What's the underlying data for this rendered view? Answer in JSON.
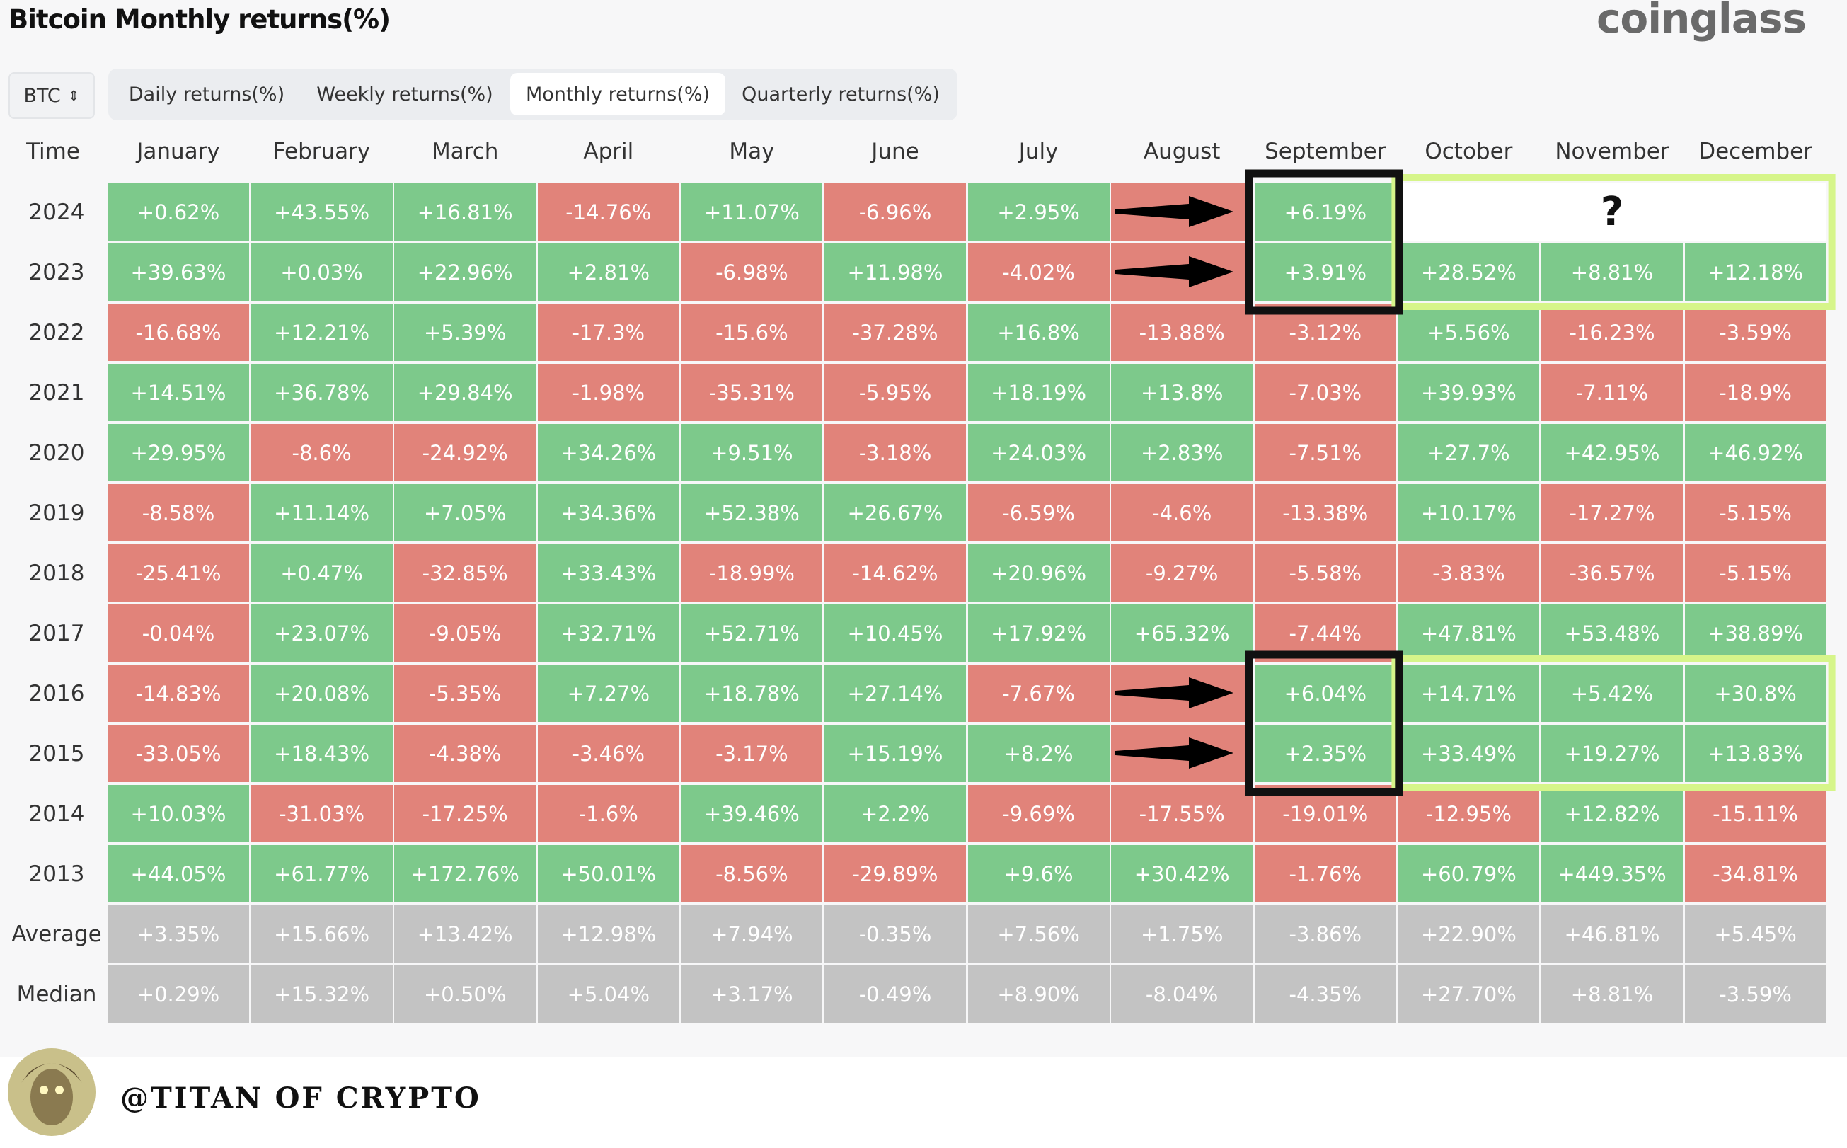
{
  "header": {
    "title": "Bitcoin Monthly returns(%)",
    "brand": "coinglass"
  },
  "controls": {
    "asset": "BTC",
    "tabs": [
      "Daily returns(%)",
      "Weekly returns(%)",
      "Monthly returns(%)",
      "Quarterly returns(%)"
    ],
    "active_tab": 2
  },
  "table": {
    "columns": [
      "Time",
      "January",
      "February",
      "March",
      "April",
      "May",
      "June",
      "July",
      "August",
      "September",
      "October",
      "November",
      "December"
    ],
    "rows": [
      [
        "2024",
        "+0.62%",
        "+43.55%",
        "+16.81%",
        "-14.76%",
        "+11.07%",
        "-6.96%",
        "+2.95%",
        null,
        "+6.19%"
      ],
      [
        "2023",
        "+39.63%",
        "+0.03%",
        "+22.96%",
        "+2.81%",
        "-6.98%",
        "+11.98%",
        "-4.02%",
        null,
        "+3.91%",
        "+28.52%",
        "+8.81%",
        "+12.18%"
      ],
      [
        "2022",
        "-16.68%",
        "+12.21%",
        "+5.39%",
        "-17.3%",
        "-15.6%",
        "-37.28%",
        "+16.8%",
        "-13.88%",
        "-3.12%",
        "+5.56%",
        "-16.23%",
        "-3.59%"
      ],
      [
        "2021",
        "+14.51%",
        "+36.78%",
        "+29.84%",
        "-1.98%",
        "-35.31%",
        "-5.95%",
        "+18.19%",
        "+13.8%",
        "-7.03%",
        "+39.93%",
        "-7.11%",
        "-18.9%"
      ],
      [
        "2020",
        "+29.95%",
        "-8.6%",
        "-24.92%",
        "+34.26%",
        "+9.51%",
        "-3.18%",
        "+24.03%",
        "+2.83%",
        "-7.51%",
        "+27.7%",
        "+42.95%",
        "+46.92%"
      ],
      [
        "2019",
        "-8.58%",
        "+11.14%",
        "+7.05%",
        "+34.36%",
        "+52.38%",
        "+26.67%",
        "-6.59%",
        "-4.6%",
        "-13.38%",
        "+10.17%",
        "-17.27%",
        "-5.15%"
      ],
      [
        "2018",
        "-25.41%",
        "+0.47%",
        "-32.85%",
        "+33.43%",
        "-18.99%",
        "-14.62%",
        "+20.96%",
        "-9.27%",
        "-5.58%",
        "-3.83%",
        "-36.57%",
        "-5.15%"
      ],
      [
        "2017",
        "-0.04%",
        "+23.07%",
        "-9.05%",
        "+32.71%",
        "+52.71%",
        "+10.45%",
        "+17.92%",
        "+65.32%",
        "-7.44%",
        "+47.81%",
        "+53.48%",
        "+38.89%"
      ],
      [
        "2016",
        "-14.83%",
        "+20.08%",
        "-5.35%",
        "+7.27%",
        "+18.78%",
        "+27.14%",
        "-7.67%",
        null,
        "+6.04%",
        "+14.71%",
        "+5.42%",
        "+30.8%"
      ],
      [
        "2015",
        "-33.05%",
        "+18.43%",
        "-4.38%",
        "-3.46%",
        "-3.17%",
        "+15.19%",
        "+8.2%",
        null,
        "+2.35%",
        "+33.49%",
        "+19.27%",
        "+13.83%"
      ],
      [
        "2014",
        "+10.03%",
        "-31.03%",
        "-17.25%",
        "-1.6%",
        "+39.46%",
        "+2.2%",
        "-9.69%",
        "-17.55%",
        "-19.01%",
        "-12.95%",
        "+12.82%",
        "-15.11%"
      ],
      [
        "2013",
        "+44.05%",
        "+61.77%",
        "+172.76%",
        "+50.01%",
        "-8.56%",
        "-29.89%",
        "+9.6%",
        "+30.42%",
        "-1.76%",
        "+60.79%",
        "+449.35%",
        "-34.81%"
      ]
    ],
    "summary_rows": [
      [
        "Average",
        "+3.35%",
        "+15.66%",
        "+13.42%",
        "+12.98%",
        "+7.94%",
        "-0.35%",
        "+7.56%",
        "+1.75%",
        "-3.86%",
        "+22.90%",
        "+46.81%",
        "+5.45%"
      ],
      [
        "Median",
        "+0.29%",
        "+15.32%",
        "+0.50%",
        "+5.04%",
        "+3.17%",
        "-0.49%",
        "+8.90%",
        "-8.04%",
        "-4.35%",
        "+27.70%",
        "+8.81%",
        "-3.59%"
      ]
    ],
    "colors": {
      "positive": "#7dc98b",
      "negative": "#e1837a",
      "summary": "#c3c3c3",
      "hidden": "#e1837a"
    }
  },
  "annotations": {
    "question_mark": "?"
  },
  "footer": {
    "handle": "@TITAN OF CRYPTO"
  }
}
